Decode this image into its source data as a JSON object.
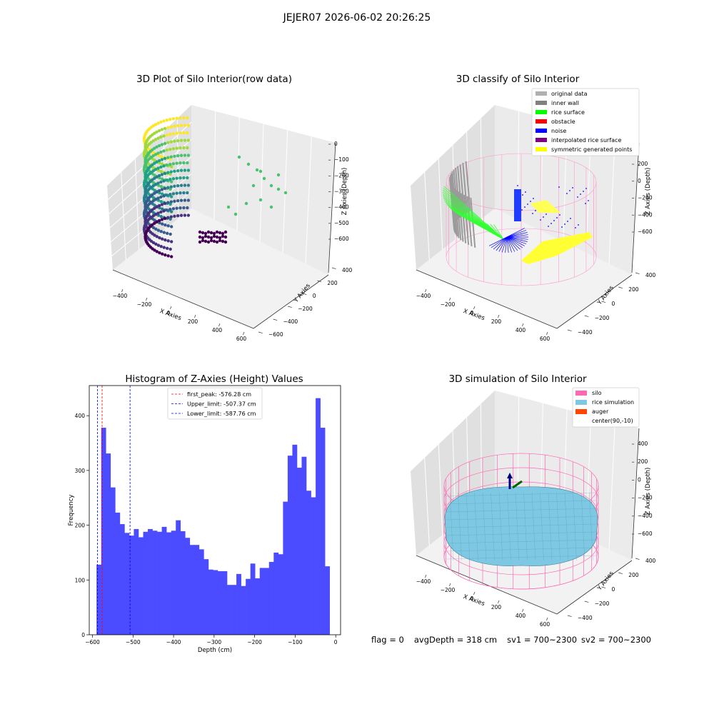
{
  "suptitle": "JEJER07 2026-06-02 20:26:25",
  "panels": {
    "top_left": {
      "title": "3D Plot of Silo Interior(row data)",
      "xlabel": "X Axies",
      "ylabel": "Y Axies",
      "zlabel": "Z Axies (Depth)",
      "xticks": [
        "−400",
        "−200",
        "0",
        "200",
        "400",
        "600"
      ],
      "yticks": [
        "−600",
        "−400",
        "−200",
        "0",
        "200",
        "400"
      ],
      "zticks": [
        "0",
        "−100",
        "−200",
        "−300",
        "−400",
        "−500",
        "−600"
      ]
    },
    "top_right": {
      "title": "3D classify of Silo Interior",
      "xlabel": "X Axies",
      "ylabel": "Y Axies",
      "zlabel": "Z Axies (Depth)",
      "xticks": [
        "−400",
        "−200",
        "0",
        "200",
        "400",
        "600"
      ],
      "yticks": [
        "−400",
        "−200",
        "0",
        "200",
        "400"
      ],
      "zticks": [
        "200",
        "0",
        "−200",
        "−400",
        "−600"
      ],
      "legend": [
        {
          "label": "original data",
          "color": "#b0b0b0"
        },
        {
          "label": "inner wall",
          "color": "#808080"
        },
        {
          "label": "rice surface",
          "color": "#00ff00"
        },
        {
          "label": "obstacle",
          "color": "#ff0000"
        },
        {
          "label": "noise",
          "color": "#0000ff"
        },
        {
          "label": "interpolated rice surface",
          "color": "#800080"
        },
        {
          "label": "symmetric generated points",
          "color": "#ffff00"
        }
      ]
    },
    "bottom_right": {
      "title": "3D simulation of Silo Interior",
      "xlabel": "X Axies",
      "ylabel": "Y Axies",
      "zlabel": "Z Axies (Depth)",
      "xticks": [
        "−400",
        "−200",
        "0",
        "200",
        "400",
        "600"
      ],
      "yticks": [
        "−400",
        "−200",
        "0",
        "200",
        "400"
      ],
      "zticks": [
        "400",
        "200",
        "0",
        "−200",
        "−400",
        "−600"
      ],
      "legend": [
        {
          "label": "silo",
          "color": "#ff69b4"
        },
        {
          "label": "rice simulation",
          "color": "#7ec8e3"
        },
        {
          "label": "auger",
          "color": "#ff4500"
        },
        {
          "label": "center(90,-10)",
          "color": ""
        }
      ]
    }
  },
  "chart_data": [
    {
      "type": "bar",
      "title": "Histogram of Z-Axies (Height) Values",
      "xlabel": "Depth (cm)",
      "ylabel": "Frequency",
      "xlim": [
        -608,
        12
      ],
      "ylim": [
        0,
        455
      ],
      "xticks": [
        -600,
        -500,
        -400,
        -300,
        -200,
        -100,
        0
      ],
      "yticks": [
        0,
        100,
        200,
        300,
        400
      ],
      "bar_color": "#4b4bff",
      "bin_edges_start": -590,
      "bin_width": 11.5,
      "values": [
        128,
        378,
        331,
        269,
        223,
        202,
        186,
        181,
        193,
        178,
        188,
        193,
        190,
        188,
        197,
        187,
        190,
        209,
        189,
        177,
        164,
        164,
        156,
        138,
        119,
        118,
        116,
        116,
        91,
        91,
        111,
        89,
        102,
        130,
        103,
        122,
        122,
        133,
        150,
        147,
        243,
        327,
        347,
        305,
        325,
        263,
        251,
        432,
        378,
        125
      ],
      "lines": [
        {
          "label": "first_peak: -576.28 cm",
          "x": -576.28,
          "color": "#ff0000"
        },
        {
          "label": "Upper_limit: -507.37 cm",
          "x": -507.37,
          "color": "#0000ff"
        },
        {
          "label": "Lower_limit: -587.76 cm",
          "x": -587.76,
          "color": "#0000ff"
        }
      ],
      "legend_position": "top-center"
    }
  ],
  "footer": {
    "flag": "flag = 0",
    "avg": "avgDepth = 318 cm",
    "sv1": "sv1 = 700~2300",
    "sv2": "sv2 = 700~2300"
  }
}
